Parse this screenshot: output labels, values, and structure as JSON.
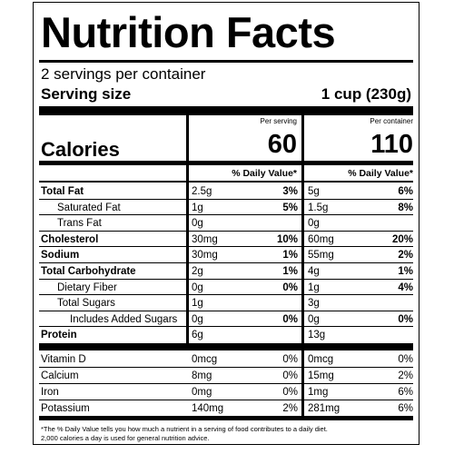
{
  "title": "Nutrition Facts",
  "servings_per_container": "2 servings per container",
  "serving_size_label": "Serving size",
  "serving_size_value": "1 cup (230g)",
  "per_serving_label": "Per serving",
  "per_container_label": "Per container",
  "calories_label": "Calories",
  "calories_per_serving": "60",
  "calories_per_container": "110",
  "dv_header": "% Daily Value*",
  "nutrients": [
    {
      "name": "Total Fat",
      "s_amt": "2.5g",
      "s_dv": "3%",
      "c_amt": "5g",
      "c_dv": "6%"
    },
    {
      "name": "Saturated Fat",
      "s_amt": "1g",
      "s_dv": "5%",
      "c_amt": "1.5g",
      "c_dv": "8%"
    },
    {
      "name": "Trans Fat",
      "s_amt": "0g",
      "s_dv": "",
      "c_amt": "0g",
      "c_dv": ""
    },
    {
      "name": "Cholesterol",
      "s_amt": "30mg",
      "s_dv": "10%",
      "c_amt": "60mg",
      "c_dv": "20%"
    },
    {
      "name": "Sodium",
      "s_amt": "30mg",
      "s_dv": "1%",
      "c_amt": "55mg",
      "c_dv": "2%"
    },
    {
      "name": "Total Carbohydrate",
      "s_amt": "2g",
      "s_dv": "1%",
      "c_amt": "4g",
      "c_dv": "1%"
    },
    {
      "name": "Dietary Fiber",
      "s_amt": "0g",
      "s_dv": "0%",
      "c_amt": "1g",
      "c_dv": "4%"
    },
    {
      "name": "Total Sugars",
      "s_amt": "1g",
      "s_dv": "",
      "c_amt": "3g",
      "c_dv": ""
    },
    {
      "name": "Includes Added Sugars",
      "s_amt": "0g",
      "s_dv": "0%",
      "c_amt": "0g",
      "c_dv": "0%"
    },
    {
      "name": "Protein",
      "s_amt": "6g",
      "s_dv": "",
      "c_amt": "13g",
      "c_dv": ""
    }
  ],
  "vitamins": [
    {
      "name": "Vitamin D",
      "s_amt": "0mcg",
      "s_dv": "0%",
      "c_amt": "0mcg",
      "c_dv": "0%"
    },
    {
      "name": "Calcium",
      "s_amt": "8mg",
      "s_dv": "0%",
      "c_amt": "15mg",
      "c_dv": "2%"
    },
    {
      "name": "Iron",
      "s_amt": "0mg",
      "s_dv": "0%",
      "c_amt": "1mg",
      "c_dv": "6%"
    },
    {
      "name": "Potassium",
      "s_amt": "140mg",
      "s_dv": "2%",
      "c_amt": "281mg",
      "c_dv": "6%"
    }
  ],
  "footnote_line1": "*The % Daily Value tells you how much a nutrient in a serving of food contributes to a daily diet.",
  "footnote_line2": "2,000 calories a day is used for general nutrition advice."
}
